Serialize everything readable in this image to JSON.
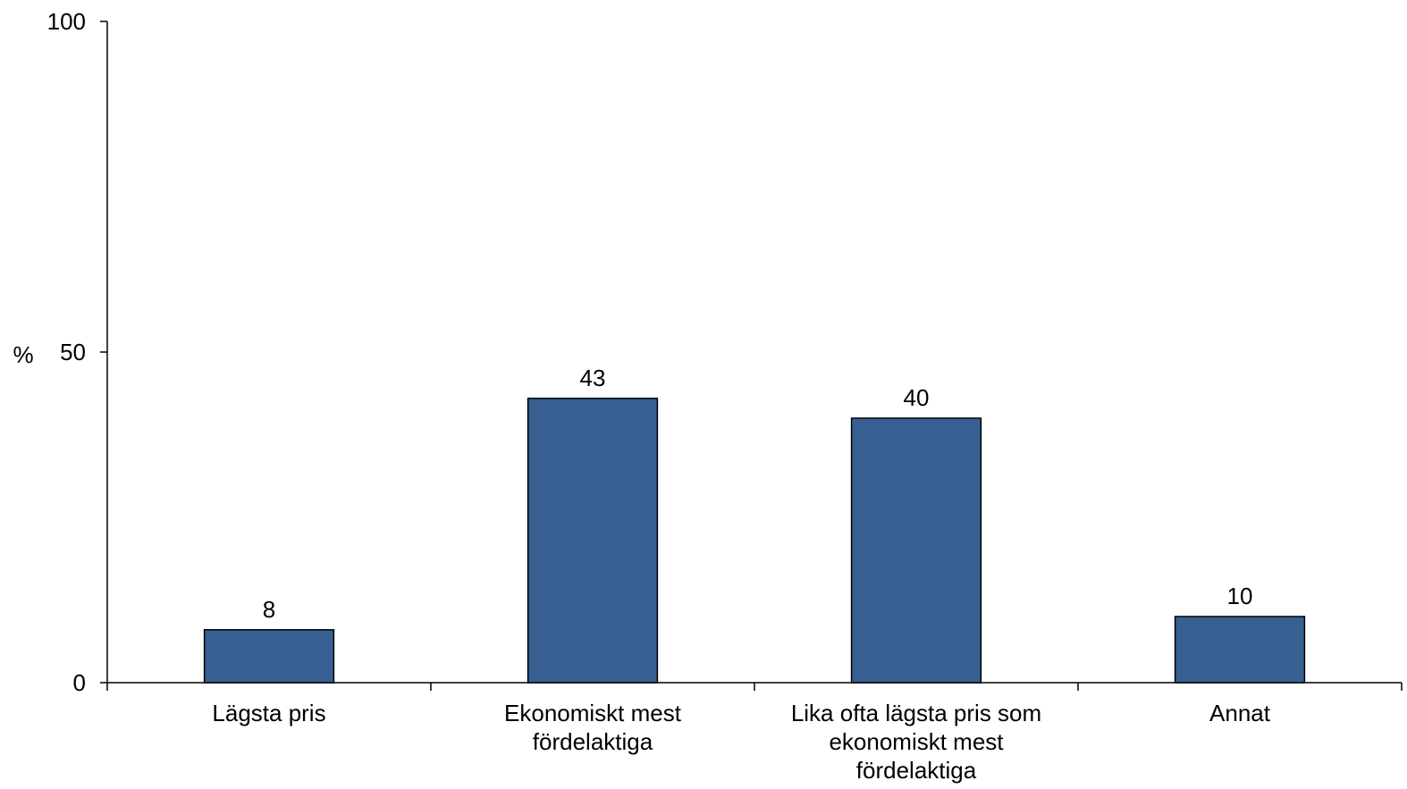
{
  "chart_data": {
    "type": "bar",
    "title": "",
    "xlabel": "",
    "ylabel": "%",
    "ylim": [
      0,
      100
    ],
    "yticks": [
      "0",
      "50",
      "100"
    ],
    "grid": false,
    "categories": [
      [
        "Lägsta pris"
      ],
      [
        "Ekonomiskt mest",
        "fördelaktiga"
      ],
      [
        "Lika ofta lägsta pris som",
        "ekonomiskt mest",
        "fördelaktiga"
      ],
      [
        "Annat"
      ]
    ],
    "values": [
      8,
      43,
      40,
      10
    ],
    "data_labels": [
      "8",
      "43",
      "40",
      "10"
    ],
    "bar_color": "#375f91",
    "bar_edge_color": "#000000"
  }
}
